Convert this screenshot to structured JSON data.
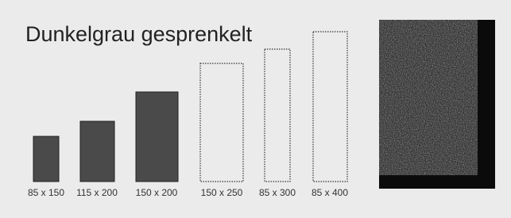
{
  "title": "Dunkelgrau gesprenkelt",
  "sizes": [
    "85 x 150",
    "115 x 200",
    "150 x 200",
    "150 x 250",
    "85 x 300",
    "85 x 400"
  ]
}
